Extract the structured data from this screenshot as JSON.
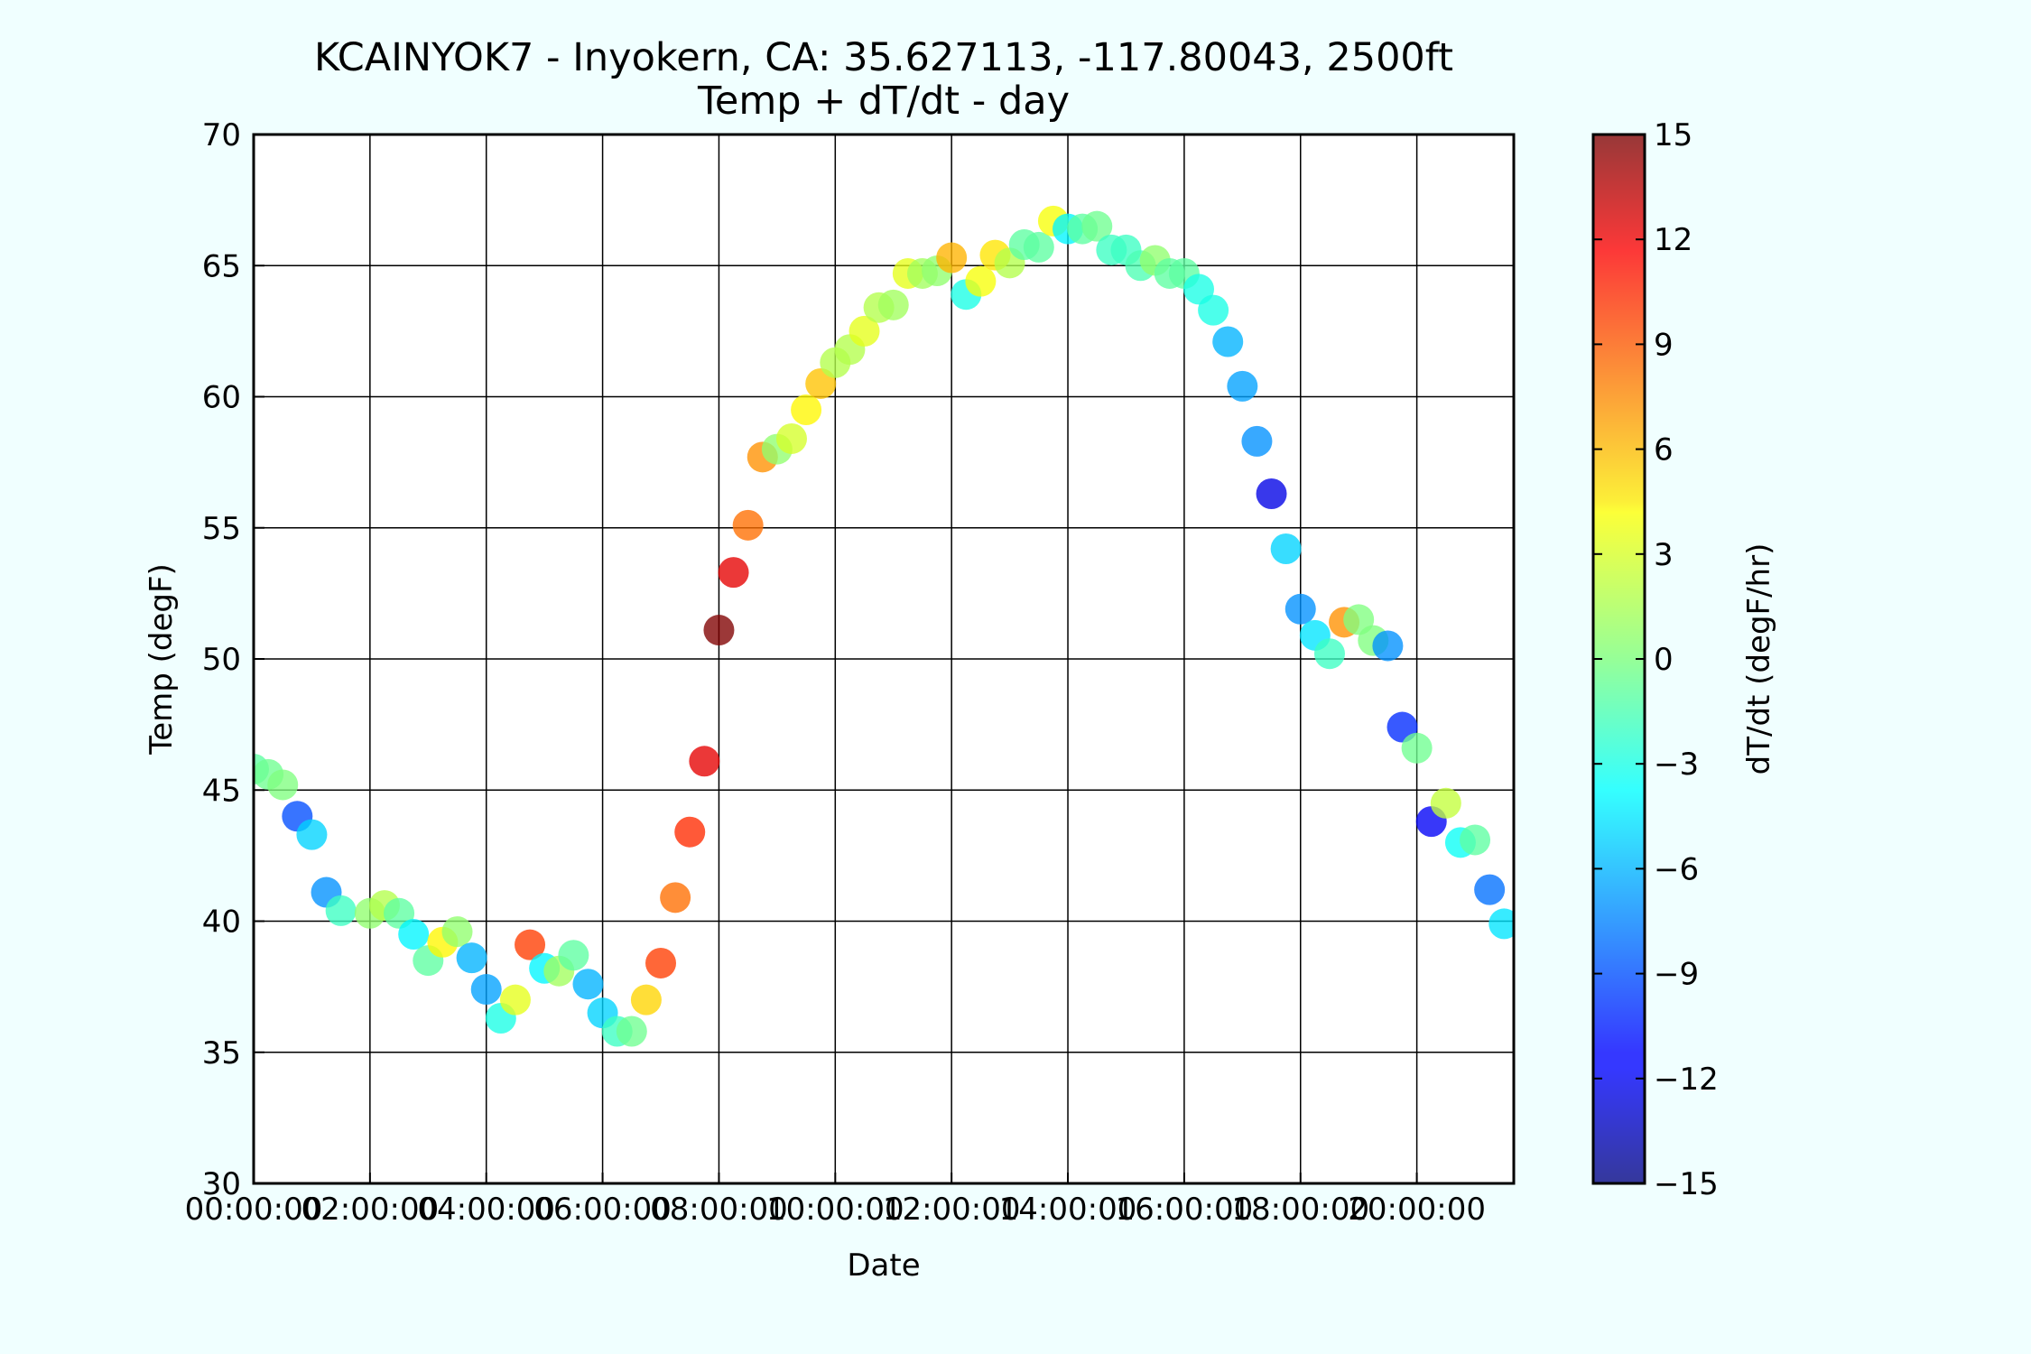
{
  "chart_data": {
    "type": "scatter",
    "title": "KCAINYOK7 - Inyokern, CA: 35.627113, -117.80043, 2500ft",
    "subtitle": "Temp + dT/dt - day",
    "xlabel": "Date",
    "ylabel": "Temp (degF)",
    "colorbar_label": "dT/dt (degF/hr)",
    "xlim": [
      0,
      26
    ],
    "ylim": [
      30,
      70
    ],
    "clim": [
      -15,
      15
    ],
    "grid": true,
    "x_ticks": [
      {
        "value": 0,
        "label": "00:00:00"
      },
      {
        "value": 2.4,
        "label": "02:00:00"
      },
      {
        "value": 4.8,
        "label": "04:00:00"
      },
      {
        "value": 7.2,
        "label": "06:00:00"
      },
      {
        "value": 9.6,
        "label": "08:00:00"
      },
      {
        "value": 12,
        "label": "10:00:00"
      },
      {
        "value": 14.4,
        "label": "12:00:00"
      },
      {
        "value": 16.8,
        "label": "14:00:00"
      },
      {
        "value": 19.2,
        "label": "16:00:00"
      },
      {
        "value": 21.6,
        "label": "18:00:00"
      },
      {
        "value": 24,
        "label": "20:00:00"
      }
    ],
    "y_ticks": [
      30,
      35,
      40,
      45,
      50,
      55,
      60,
      65,
      70
    ],
    "colorbar_ticks": [
      {
        "value": 15,
        "label": "15"
      },
      {
        "value": 12,
        "label": "12"
      },
      {
        "value": 9,
        "label": "9"
      },
      {
        "value": 6,
        "label": "6"
      },
      {
        "value": 3,
        "label": "3"
      },
      {
        "value": 0,
        "label": "0"
      },
      {
        "value": -3,
        "label": "−3"
      },
      {
        "value": -6,
        "label": "−6"
      },
      {
        "value": -9,
        "label": "−9"
      },
      {
        "value": -12,
        "label": "−12"
      },
      {
        "value": -15,
        "label": "−15"
      }
    ],
    "colormap": "jet",
    "series": [
      {
        "x": [
          0.0,
          0.3,
          0.6,
          0.9,
          1.2,
          1.5,
          1.8,
          2.4,
          2.7,
          3.0,
          3.3,
          3.6,
          3.9,
          4.2,
          4.5,
          4.8,
          5.1,
          5.4,
          5.7,
          6.0,
          6.3,
          6.6,
          6.9,
          7.2,
          7.5,
          7.8,
          8.1,
          8.4,
          8.7,
          9.0,
          9.3,
          9.6,
          9.9,
          10.2,
          10.5,
          10.8,
          11.1,
          11.4,
          11.7,
          12.0,
          12.3,
          12.6,
          12.9,
          13.2,
          13.5,
          13.8,
          14.1,
          14.4,
          14.7,
          15.0,
          15.3,
          15.6,
          15.9,
          16.2,
          16.5,
          16.8,
          17.1,
          17.4,
          17.7,
          18.0,
          18.3,
          18.6,
          18.9,
          19.2,
          19.5,
          19.8,
          20.1,
          20.4,
          20.7,
          21.0,
          21.3,
          21.6,
          21.9,
          22.2,
          22.5,
          22.8,
          23.1,
          23.4,
          23.7,
          24.0,
          24.3,
          24.6,
          24.9,
          25.2,
          25.5,
          25.8
        ],
        "temp": [
          45.8,
          45.6,
          45.2,
          44.0,
          43.3,
          41.1,
          40.4,
          40.3,
          40.6,
          40.3,
          39.5,
          38.5,
          39.2,
          39.6,
          38.6,
          37.4,
          36.3,
          37.0,
          39.1,
          38.2,
          38.1,
          38.7,
          37.6,
          36.5,
          35.8,
          35.8,
          37.0,
          38.4,
          40.9,
          43.4,
          46.1,
          51.1,
          53.3,
          55.1,
          57.7,
          58.0,
          58.4,
          59.5,
          60.5,
          61.3,
          61.8,
          62.5,
          63.4,
          63.5,
          64.7,
          64.7,
          64.8,
          65.3,
          63.9,
          64.4,
          65.4,
          65.1,
          65.8,
          65.7,
          66.7,
          66.4,
          66.4,
          66.5,
          65.6,
          65.6,
          65.0,
          65.2,
          64.7,
          64.7,
          64.1,
          63.3,
          62.1,
          60.4,
          58.3,
          56.3,
          54.2,
          51.9,
          50.9,
          50.2,
          51.4,
          51.5,
          50.7,
          50.5,
          47.4,
          46.6,
          43.8,
          44.5,
          43.0,
          43.1,
          41.2,
          39.9
        ],
        "dTdt": [
          -1.0,
          -0.5,
          0.0,
          -9.0,
          -5.0,
          -7.0,
          -2.0,
          0.5,
          1.5,
          -1.0,
          -4.0,
          -1.0,
          4.0,
          0.5,
          -6.0,
          -6.5,
          -3.0,
          3.0,
          9.5,
          -4.0,
          1.0,
          -1.0,
          -6.0,
          -5.0,
          -2.0,
          -0.5,
          5.0,
          9.5,
          8.0,
          10.0,
          12.0,
          15.0,
          12.0,
          8.0,
          7.0,
          0.5,
          2.5,
          4.0,
          5.5,
          1.5,
          1.5,
          3.0,
          1.5,
          1.0,
          3.0,
          1.0,
          0.5,
          6.0,
          -3.0,
          3.5,
          4.5,
          1.5,
          -1.0,
          -1.0,
          3.5,
          -4.0,
          -1.0,
          -0.5,
          -2.0,
          -2.0,
          -1.5,
          0.5,
          -1.0,
          -1.0,
          -3.0,
          -3.0,
          -6.0,
          -6.5,
          -7.0,
          -12.0,
          -5.0,
          -7.0,
          -4.5,
          -2.0,
          7.0,
          0.0,
          0.0,
          -7.0,
          -10.0,
          -0.5,
          -11.5,
          2.0,
          -3.5,
          -1.0,
          -8.0,
          -4.5
        ]
      }
    ]
  }
}
